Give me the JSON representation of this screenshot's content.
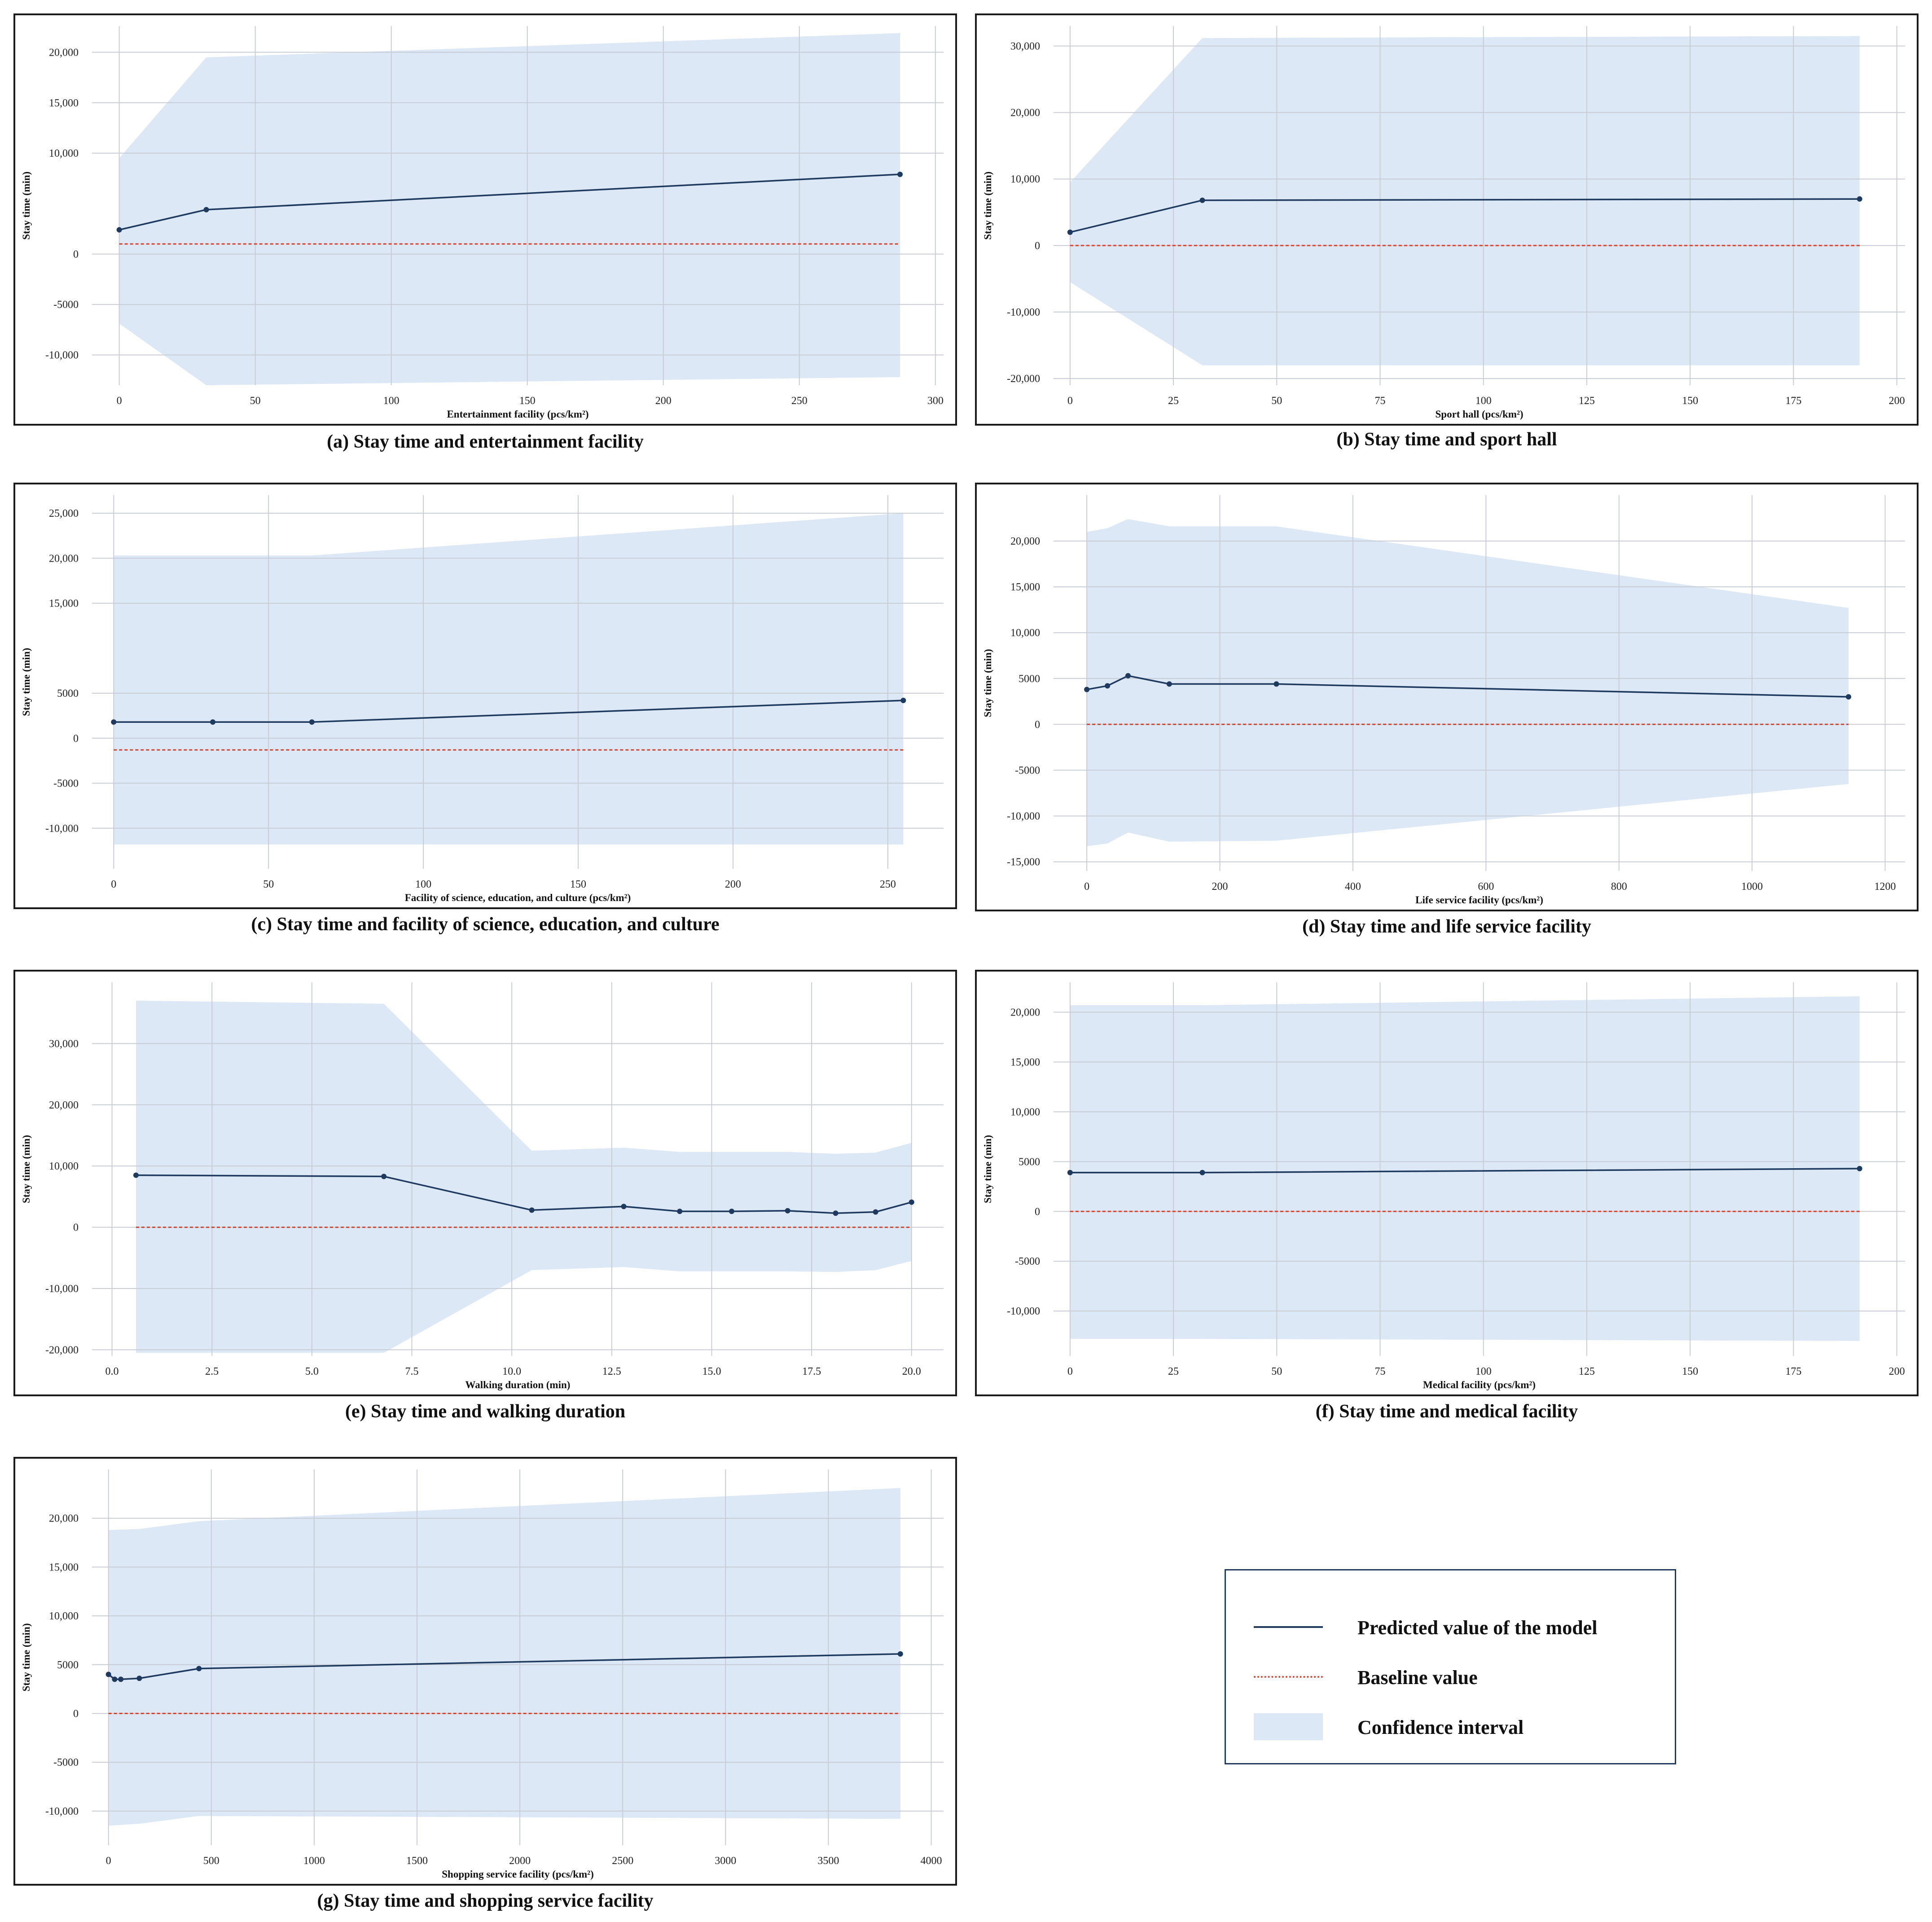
{
  "colors": {
    "line": "#1f3a5f",
    "baseline": "#d9412b",
    "ci_fill": "#dce8f6",
    "grid": "#c8ccd4",
    "frame": "#1b1b1b"
  },
  "legend": {
    "items": [
      {
        "label": "Predicted value of the model",
        "symbol": "line"
      },
      {
        "label": "Baseline value",
        "symbol": "dotted-line"
      },
      {
        "label": "Confidence interval",
        "symbol": "fill"
      }
    ]
  },
  "chart_data": [
    {
      "id": "a",
      "type": "line",
      "caption": "(a) Stay time and entertainment facility",
      "xlabel": "Entertainment facility (pcs/km²)",
      "ylabel": "Stay time (min)",
      "xlim": [
        -10,
        303
      ],
      "ylim": [
        -13000,
        22600
      ],
      "xticks": [
        0,
        50,
        100,
        150,
        200,
        250,
        300
      ],
      "xtick_labels": [
        "0",
        "50",
        "100",
        "150",
        "200",
        "250",
        "300"
      ],
      "yticks": [
        -10000,
        -5000,
        0,
        10000,
        15000,
        20000
      ],
      "ytick_labels": [
        "-10,000",
        "-5000",
        "0",
        "10,000",
        "15,000",
        "20,000"
      ],
      "x": [
        0,
        32,
        287
      ],
      "y": [
        2400,
        4400,
        7900
      ],
      "ci_x": [
        0,
        32,
        287
      ],
      "ci_lower": [
        -6900,
        -13000,
        -12200
      ],
      "ci_upper": [
        9500,
        19500,
        21900
      ],
      "baseline": 1000
    },
    {
      "id": "b",
      "type": "line",
      "caption": "(b) Stay time and sport hall",
      "xlabel": "Sport hall (pcs/km²)",
      "ylabel": "Stay time (min)",
      "xlim": [
        -4,
        202
      ],
      "ylim": [
        -21000,
        33000
      ],
      "xticks": [
        0,
        25,
        50,
        75,
        100,
        125,
        150,
        175,
        200
      ],
      "xtick_labels": [
        "0",
        "25",
        "50",
        "75",
        "100",
        "125",
        "150",
        "175",
        "200"
      ],
      "yticks": [
        -20000,
        -10000,
        0,
        10000,
        20000,
        30000
      ],
      "ytick_labels": [
        "-20,000",
        "-10,000",
        "0",
        "10,000",
        "20,000",
        "30,000"
      ],
      "x": [
        0,
        32,
        191
      ],
      "y": [
        2000,
        6800,
        7000
      ],
      "ci_x": [
        0,
        32,
        191
      ],
      "ci_lower": [
        -5500,
        -18000,
        -18000
      ],
      "ci_upper": [
        9500,
        31200,
        31500
      ],
      "baseline": 0
    },
    {
      "id": "c",
      "type": "line",
      "caption": "(c) Stay time and facility of science, education, and culture",
      "xlabel": "Facility of science, education, and culture (pcs/km²)",
      "ylabel": "Stay time (min)",
      "xlim": [
        -7,
        268
      ],
      "ylim": [
        -14500,
        27000
      ],
      "xticks": [
        0,
        50,
        100,
        150,
        200,
        250
      ],
      "xtick_labels": [
        "0",
        "50",
        "100",
        "150",
        "200",
        "250"
      ],
      "yticks": [
        -10000,
        -5000,
        0,
        5000,
        15000,
        20000,
        25000
      ],
      "ytick_labels": [
        "-10,000",
        "-5000",
        "0",
        "5000",
        "15,000",
        "20,000",
        "25,000"
      ],
      "x": [
        0,
        32,
        64,
        255
      ],
      "y": [
        1800,
        1800,
        1800,
        4200
      ],
      "ci_x": [
        0,
        32,
        64,
        255
      ],
      "ci_lower": [
        -11800,
        -11800,
        -11800,
        -11800
      ],
      "ci_upper": [
        20300,
        20300,
        20300,
        25000
      ],
      "baseline": -1300
    },
    {
      "id": "d",
      "type": "line",
      "caption": "(d) Stay time and life service facility",
      "xlabel": "Life service facility (pcs/km²)",
      "ylabel": "Stay time (min)",
      "xlim": [
        -50,
        1230
      ],
      "ylim": [
        -16000,
        25000
      ],
      "xticks": [
        0,
        200,
        400,
        600,
        800,
        1000,
        1200
      ],
      "xtick_labels": [
        "0",
        "200",
        "400",
        "600",
        "800",
        "1000",
        "1200"
      ],
      "yticks": [
        -15000,
        -10000,
        -5000,
        0,
        5000,
        10000,
        15000,
        20000
      ],
      "ytick_labels": [
        "-15,000",
        "-10,000",
        "-5000",
        "0",
        "5000",
        "10,000",
        "15,000",
        "20,000"
      ],
      "x": [
        0,
        31,
        62,
        124,
        285,
        1145
      ],
      "y": [
        3800,
        4200,
        5300,
        4400,
        4400,
        3000
      ],
      "ci_x": [
        0,
        31,
        62,
        124,
        285,
        1145
      ],
      "ci_lower": [
        -13300,
        -13000,
        -11800,
        -12800,
        -12700,
        -6500
      ],
      "ci_upper": [
        21000,
        21400,
        22400,
        21600,
        21600,
        12700
      ],
      "baseline": 0
    },
    {
      "id": "e",
      "type": "line",
      "caption": "(e) Stay time and walking duration",
      "xlabel": "Walking duration (min)",
      "ylabel": "Stay time (min)",
      "xlim": [
        -0.5,
        20.8
      ],
      "ylim": [
        -21000,
        40000
      ],
      "xticks": [
        0,
        2.5,
        5,
        7.5,
        10,
        12.5,
        15,
        17.5,
        20
      ],
      "xtick_labels": [
        "0.0",
        "2.5",
        "5.0",
        "7.5",
        "10.0",
        "12.5",
        "15.0",
        "17.5",
        "20.0"
      ],
      "yticks": [
        -20000,
        -10000,
        0,
        10000,
        20000,
        30000
      ],
      "ytick_labels": [
        "-20,000",
        "-10,000",
        "0",
        "10,000",
        "20,000",
        "30,000"
      ],
      "x": [
        0.6,
        6.8,
        10.5,
        12.8,
        14.2,
        15.5,
        16.9,
        18.1,
        19.1,
        20.0
      ],
      "y": [
        8500,
        8300,
        2800,
        3400,
        2600,
        2600,
        2700,
        2300,
        2500,
        4100
      ],
      "ci_x": [
        0.6,
        6.8,
        10.5,
        12.8,
        14.2,
        15.5,
        16.9,
        18.1,
        19.1,
        20.0
      ],
      "ci_lower": [
        -20500,
        -20500,
        -7000,
        -6500,
        -7200,
        -7200,
        -7200,
        -7300,
        -7000,
        -5500
      ],
      "ci_upper": [
        37000,
        36500,
        12500,
        13000,
        12300,
        12300,
        12300,
        12000,
        12200,
        13800
      ],
      "baseline": 0
    },
    {
      "id": "f",
      "type": "line",
      "caption": "(f) Stay time and medical facility",
      "xlabel": "Medical facility (pcs/km²)",
      "ylabel": "Stay time (min)",
      "xlim": [
        -4,
        202
      ],
      "ylim": [
        -14500,
        23000
      ],
      "xticks": [
        0,
        25,
        50,
        75,
        100,
        125,
        150,
        175,
        200
      ],
      "xtick_labels": [
        "0",
        "25",
        "50",
        "75",
        "100",
        "125",
        "150",
        "175",
        "200"
      ],
      "yticks": [
        -10000,
        -5000,
        0,
        5000,
        10000,
        15000,
        20000
      ],
      "ytick_labels": [
        "-10,000",
        "-5000",
        "0",
        "5000",
        "10,000",
        "15,000",
        "20,000"
      ],
      "x": [
        0,
        32,
        191
      ],
      "y": [
        3900,
        3900,
        4300
      ],
      "ci_x": [
        0,
        32,
        191
      ],
      "ci_lower": [
        -12800,
        -12800,
        -13000
      ],
      "ci_upper": [
        20700,
        20700,
        21600
      ],
      "baseline": 0
    },
    {
      "id": "g",
      "type": "line",
      "caption": "(g) Stay time and shopping service facility",
      "xlabel": "Shopping service facility (pcs/km²)",
      "ylabel": "Stay time (min)",
      "xlim": [
        -80,
        4060
      ],
      "ylim": [
        -13500,
        25000
      ],
      "xticks": [
        0,
        500,
        1000,
        1500,
        2000,
        2500,
        3000,
        3500,
        4000
      ],
      "xtick_labels": [
        "0",
        "500",
        "1000",
        "1500",
        "2000",
        "2500",
        "3000",
        "3500",
        "4000"
      ],
      "yticks": [
        -10000,
        -5000,
        0,
        5000,
        10000,
        15000,
        20000
      ],
      "ytick_labels": [
        "-10,000",
        "-5000",
        "0",
        "5000",
        "10,000",
        "15,000",
        "20,000"
      ],
      "x": [
        0,
        30,
        60,
        150,
        440,
        3850
      ],
      "y": [
        4000,
        3500,
        3500,
        3600,
        4600,
        6100
      ],
      "ci_x": [
        0,
        150,
        440,
        3850
      ],
      "ci_lower": [
        -11500,
        -11300,
        -10500,
        -10800
      ],
      "ci_upper": [
        18800,
        18900,
        19700,
        23100
      ],
      "baseline": 0
    }
  ]
}
